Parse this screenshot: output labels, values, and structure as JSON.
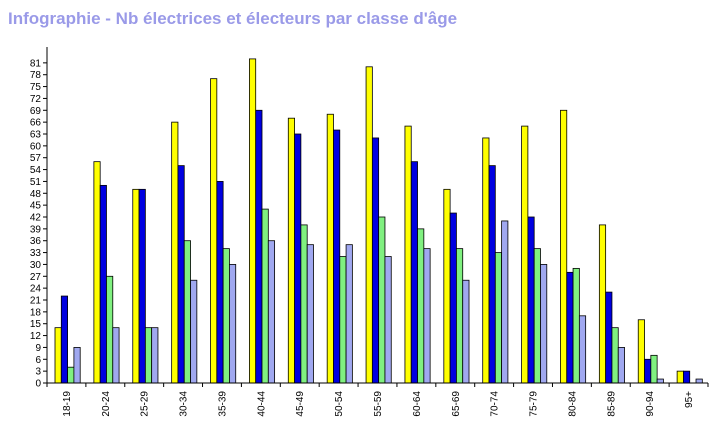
{
  "title": "Infographie - Nb électrices et électeurs par classe d'âge",
  "chart_data": {
    "type": "bar",
    "title": "Infographie - Nb électrices et électeurs par classe d'âge",
    "xlabel": "",
    "ylabel": "",
    "ylim": [
      0,
      84
    ],
    "yticks": [
      0,
      3,
      6,
      9,
      12,
      15,
      18,
      21,
      24,
      27,
      30,
      33,
      36,
      39,
      42,
      45,
      48,
      51,
      54,
      57,
      60,
      63,
      66,
      69,
      72,
      75,
      78,
      81
    ],
    "grid": false,
    "legend": "none",
    "categories": [
      "18-19",
      "20-24",
      "25-29",
      "30-34",
      "35-39",
      "40-44",
      "45-49",
      "50-54",
      "55-59",
      "60-64",
      "65-69",
      "70-74",
      "75-79",
      "80-84",
      "85-89",
      "90-94",
      "95+"
    ],
    "series": [
      {
        "color": "#ffff00",
        "values": [
          14,
          56,
          49,
          66,
          77,
          82,
          67,
          68,
          80,
          65,
          49,
          62,
          65,
          69,
          40,
          16,
          3
        ]
      },
      {
        "color": "#0000e0",
        "values": [
          22,
          50,
          49,
          55,
          51,
          69,
          63,
          64,
          62,
          56,
          43,
          55,
          42,
          28,
          23,
          6,
          3
        ]
      },
      {
        "color": "#80f080",
        "values": [
          4,
          27,
          14,
          36,
          34,
          44,
          40,
          32,
          42,
          39,
          34,
          33,
          34,
          29,
          14,
          7,
          0
        ]
      },
      {
        "color": "#a0a8f0",
        "values": [
          9,
          14,
          14,
          26,
          30,
          36,
          35,
          35,
          32,
          34,
          26,
          41,
          30,
          17,
          9,
          1,
          1
        ]
      }
    ]
  }
}
